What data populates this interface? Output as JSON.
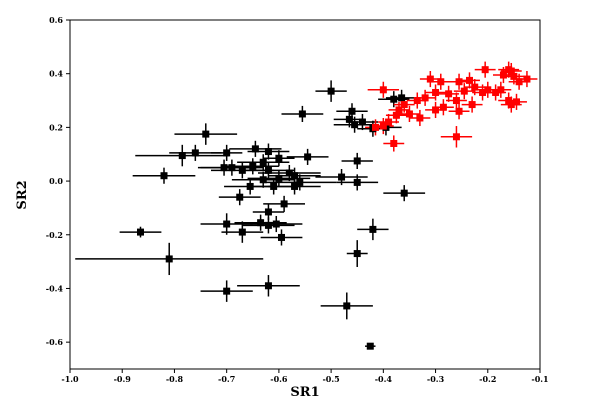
{
  "chart_data": {
    "type": "scatter",
    "title": "",
    "xlabel": "SR1",
    "ylabel": "SR2",
    "xlim": [
      -1.0,
      -0.1
    ],
    "ylim": [
      -0.7,
      0.6
    ],
    "xticks": [
      "-1.0",
      "-0.9",
      "-0.8",
      "-0.7",
      "-0.6",
      "-0.5",
      "-0.4",
      "-0.3",
      "-0.2",
      "-0.1"
    ],
    "yticks": [
      "-0.6",
      "-0.4",
      "-0.2",
      "0.0",
      "0.2",
      "0.4",
      "0.6"
    ],
    "xtick_values": [
      -1.0,
      -0.9,
      -0.8,
      -0.7,
      -0.6,
      -0.5,
      -0.4,
      -0.3,
      -0.2,
      -0.1
    ],
    "ytick_values": [
      -0.6,
      -0.4,
      -0.2,
      0.0,
      0.2,
      0.4,
      0.6
    ],
    "grid": false,
    "series": [
      {
        "color": "#000000",
        "points": [
          {
            "x": -0.5,
            "y": 0.335,
            "xerr": 0.03,
            "yerr": 0.04
          },
          {
            "x": -0.555,
            "y": 0.25,
            "xerr": 0.04,
            "yerr": 0.03
          },
          {
            "x": -0.46,
            "y": 0.26,
            "xerr": 0.03,
            "yerr": 0.03
          },
          {
            "x": -0.465,
            "y": 0.23,
            "xerr": 0.03,
            "yerr": 0.03
          },
          {
            "x": -0.44,
            "y": 0.22,
            "xerr": 0.03,
            "yerr": 0.03
          },
          {
            "x": -0.455,
            "y": 0.21,
            "xerr": 0.04,
            "yerr": 0.03
          },
          {
            "x": -0.38,
            "y": 0.305,
            "xerr": 0.03,
            "yerr": 0.03
          },
          {
            "x": -0.365,
            "y": 0.31,
            "xerr": 0.03,
            "yerr": 0.03
          },
          {
            "x": -0.42,
            "y": 0.195,
            "xerr": 0.03,
            "yerr": 0.03
          },
          {
            "x": -0.395,
            "y": 0.2,
            "xerr": 0.03,
            "yerr": 0.03
          },
          {
            "x": -0.74,
            "y": 0.175,
            "xerr": 0.06,
            "yerr": 0.04
          },
          {
            "x": -0.785,
            "y": 0.095,
            "xerr": 0.09,
            "yerr": 0.04
          },
          {
            "x": -0.76,
            "y": 0.105,
            "xerr": 0.05,
            "yerr": 0.03
          },
          {
            "x": -0.7,
            "y": 0.105,
            "xerr": 0.03,
            "yerr": 0.03
          },
          {
            "x": -0.645,
            "y": 0.12,
            "xerr": 0.05,
            "yerr": 0.03
          },
          {
            "x": -0.62,
            "y": 0.11,
            "xerr": 0.04,
            "yerr": 0.03
          },
          {
            "x": -0.545,
            "y": 0.09,
            "xerr": 0.04,
            "yerr": 0.03
          },
          {
            "x": -0.6,
            "y": 0.085,
            "xerr": 0.03,
            "yerr": 0.03
          },
          {
            "x": -0.63,
            "y": 0.07,
            "xerr": 0.05,
            "yerr": 0.03
          },
          {
            "x": -0.65,
            "y": 0.055,
            "xerr": 0.05,
            "yerr": 0.03
          },
          {
            "x": -0.69,
            "y": 0.05,
            "xerr": 0.06,
            "yerr": 0.03
          },
          {
            "x": -0.705,
            "y": 0.05,
            "xerr": 0.05,
            "yerr": 0.03
          },
          {
            "x": -0.82,
            "y": 0.02,
            "xerr": 0.06,
            "yerr": 0.03
          },
          {
            "x": -0.67,
            "y": 0.04,
            "xerr": 0.06,
            "yerr": 0.03
          },
          {
            "x": -0.62,
            "y": 0.04,
            "xerr": 0.05,
            "yerr": 0.03
          },
          {
            "x": -0.58,
            "y": 0.03,
            "xerr": 0.06,
            "yerr": 0.03
          },
          {
            "x": -0.57,
            "y": 0.02,
            "xerr": 0.05,
            "yerr": 0.03
          },
          {
            "x": -0.6,
            "y": 0.01,
            "xerr": 0.06,
            "yerr": 0.03
          },
          {
            "x": -0.63,
            "y": 0.005,
            "xerr": 0.06,
            "yerr": 0.03
          },
          {
            "x": -0.56,
            "y": -0.005,
            "xerr": 0.07,
            "yerr": 0.03
          },
          {
            "x": -0.48,
            "y": 0.015,
            "xerr": 0.05,
            "yerr": 0.03
          },
          {
            "x": -0.45,
            "y": 0.075,
            "xerr": 0.03,
            "yerr": 0.03
          },
          {
            "x": -0.45,
            "y": -0.005,
            "xerr": 0.04,
            "yerr": 0.03
          },
          {
            "x": -0.655,
            "y": -0.02,
            "xerr": 0.05,
            "yerr": 0.03
          },
          {
            "x": -0.61,
            "y": -0.02,
            "xerr": 0.05,
            "yerr": 0.03
          },
          {
            "x": -0.57,
            "y": -0.02,
            "xerr": 0.05,
            "yerr": 0.03
          },
          {
            "x": -0.36,
            "y": -0.045,
            "xerr": 0.04,
            "yerr": 0.03
          },
          {
            "x": -0.675,
            "y": -0.06,
            "xerr": 0.04,
            "yerr": 0.03
          },
          {
            "x": -0.59,
            "y": -0.085,
            "xerr": 0.04,
            "yerr": 0.03
          },
          {
            "x": -0.62,
            "y": -0.115,
            "xerr": 0.03,
            "yerr": 0.03
          },
          {
            "x": -0.7,
            "y": -0.16,
            "xerr": 0.05,
            "yerr": 0.04
          },
          {
            "x": -0.635,
            "y": -0.155,
            "xerr": 0.05,
            "yerr": 0.03
          },
          {
            "x": -0.62,
            "y": -0.165,
            "xerr": 0.05,
            "yerr": 0.03
          },
          {
            "x": -0.605,
            "y": -0.16,
            "xerr": 0.05,
            "yerr": 0.03
          },
          {
            "x": -0.595,
            "y": -0.21,
            "xerr": 0.04,
            "yerr": 0.03
          },
          {
            "x": -0.865,
            "y": -0.19,
            "xerr": 0.04,
            "yerr": 0.02
          },
          {
            "x": -0.67,
            "y": -0.19,
            "xerr": 0.04,
            "yerr": 0.04
          },
          {
            "x": -0.42,
            "y": -0.18,
            "xerr": 0.03,
            "yerr": 0.04
          },
          {
            "x": -0.45,
            "y": -0.27,
            "xerr": 0.02,
            "yerr": 0.05
          },
          {
            "x": -0.81,
            "y": -0.29,
            "xerr": 0.18,
            "yerr": 0.06
          },
          {
            "x": -0.62,
            "y": -0.39,
            "xerr": 0.06,
            "yerr": 0.04
          },
          {
            "x": -0.7,
            "y": -0.41,
            "xerr": 0.05,
            "yerr": 0.04
          },
          {
            "x": -0.47,
            "y": -0.465,
            "xerr": 0.05,
            "yerr": 0.05
          },
          {
            "x": -0.425,
            "y": -0.615,
            "xerr": 0.01,
            "yerr": 0.01
          }
        ]
      },
      {
        "color": "#ff0000",
        "points": [
          {
            "x": -0.4,
            "y": 0.34,
            "xerr": 0.03,
            "yerr": 0.03
          },
          {
            "x": -0.31,
            "y": 0.38,
            "xerr": 0.02,
            "yerr": 0.03
          },
          {
            "x": -0.29,
            "y": 0.37,
            "xerr": 0.02,
            "yerr": 0.03
          },
          {
            "x": -0.255,
            "y": 0.37,
            "xerr": 0.02,
            "yerr": 0.03
          },
          {
            "x": -0.235,
            "y": 0.375,
            "xerr": 0.02,
            "yerr": 0.03
          },
          {
            "x": -0.205,
            "y": 0.415,
            "xerr": 0.02,
            "yerr": 0.03
          },
          {
            "x": -0.17,
            "y": 0.395,
            "xerr": 0.02,
            "yerr": 0.03
          },
          {
            "x": -0.16,
            "y": 0.415,
            "xerr": 0.02,
            "yerr": 0.03
          },
          {
            "x": -0.155,
            "y": 0.41,
            "xerr": 0.02,
            "yerr": 0.03
          },
          {
            "x": -0.15,
            "y": 0.39,
            "xerr": 0.02,
            "yerr": 0.03
          },
          {
            "x": -0.14,
            "y": 0.37,
            "xerr": 0.02,
            "yerr": 0.03
          },
          {
            "x": -0.125,
            "y": 0.38,
            "xerr": 0.02,
            "yerr": 0.03
          },
          {
            "x": -0.175,
            "y": 0.34,
            "xerr": 0.02,
            "yerr": 0.03
          },
          {
            "x": -0.185,
            "y": 0.33,
            "xerr": 0.02,
            "yerr": 0.03
          },
          {
            "x": -0.2,
            "y": 0.34,
            "xerr": 0.02,
            "yerr": 0.03
          },
          {
            "x": -0.225,
            "y": 0.35,
            "xerr": 0.02,
            "yerr": 0.03
          },
          {
            "x": -0.245,
            "y": 0.335,
            "xerr": 0.02,
            "yerr": 0.03
          },
          {
            "x": -0.275,
            "y": 0.325,
            "xerr": 0.02,
            "yerr": 0.03
          },
          {
            "x": -0.3,
            "y": 0.33,
            "xerr": 0.02,
            "yerr": 0.03
          },
          {
            "x": -0.32,
            "y": 0.31,
            "xerr": 0.02,
            "yerr": 0.03
          },
          {
            "x": -0.335,
            "y": 0.3,
            "xerr": 0.02,
            "yerr": 0.03
          },
          {
            "x": -0.36,
            "y": 0.285,
            "xerr": 0.02,
            "yerr": 0.03
          },
          {
            "x": -0.37,
            "y": 0.265,
            "xerr": 0.02,
            "yerr": 0.03
          },
          {
            "x": -0.35,
            "y": 0.25,
            "xerr": 0.02,
            "yerr": 0.03
          },
          {
            "x": -0.33,
            "y": 0.235,
            "xerr": 0.02,
            "yerr": 0.03
          },
          {
            "x": -0.3,
            "y": 0.265,
            "xerr": 0.02,
            "yerr": 0.03
          },
          {
            "x": -0.285,
            "y": 0.275,
            "xerr": 0.02,
            "yerr": 0.03
          },
          {
            "x": -0.26,
            "y": 0.3,
            "xerr": 0.02,
            "yerr": 0.03
          },
          {
            "x": -0.23,
            "y": 0.285,
            "xerr": 0.02,
            "yerr": 0.03
          },
          {
            "x": -0.255,
            "y": 0.26,
            "xerr": 0.02,
            "yerr": 0.03
          },
          {
            "x": -0.16,
            "y": 0.3,
            "xerr": 0.02,
            "yerr": 0.03
          },
          {
            "x": -0.155,
            "y": 0.285,
            "xerr": 0.02,
            "yerr": 0.03
          },
          {
            "x": -0.145,
            "y": 0.295,
            "xerr": 0.02,
            "yerr": 0.03
          },
          {
            "x": -0.375,
            "y": 0.245,
            "xerr": 0.02,
            "yerr": 0.03
          },
          {
            "x": -0.39,
            "y": 0.22,
            "xerr": 0.02,
            "yerr": 0.03
          },
          {
            "x": -0.4,
            "y": 0.205,
            "xerr": 0.02,
            "yerr": 0.03
          },
          {
            "x": -0.415,
            "y": 0.2,
            "xerr": 0.02,
            "yerr": 0.03
          },
          {
            "x": -0.38,
            "y": 0.14,
            "xerr": 0.02,
            "yerr": 0.03
          },
          {
            "x": -0.26,
            "y": 0.165,
            "xerr": 0.03,
            "yerr": 0.04
          },
          {
            "x": -0.21,
            "y": 0.33,
            "xerr": 0.02,
            "yerr": 0.03
          }
        ]
      }
    ]
  }
}
